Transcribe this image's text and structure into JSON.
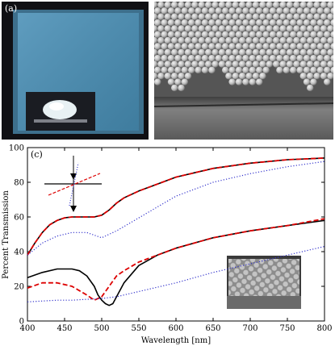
{
  "figure": {
    "panel_a": {
      "label": "(a)",
      "colors": {
        "frame": "#101014",
        "film": "#4f8fb3",
        "inset_bg": "#1a1c22",
        "droplet": "#e8f1f4"
      }
    },
    "panel_b": {
      "label": "",
      "colors": {
        "sphere": "#c9c9c9",
        "substrate": "#5f5f5f"
      }
    },
    "panel_c": {
      "label": "(c)"
    }
  },
  "chart_data": {
    "type": "line",
    "title": "",
    "xlabel": "Wavelength [nm]",
    "ylabel": "Percent Transmission",
    "xlim": [
      400,
      800
    ],
    "ylim": [
      0,
      100
    ],
    "xticks": [
      400,
      450,
      500,
      550,
      600,
      650,
      700,
      750,
      800
    ],
    "yticks": [
      0,
      20,
      40,
      60,
      80,
      100
    ],
    "grid": false,
    "legend": "none",
    "colors": {
      "solid": "#000000",
      "dashed": "#dd0000",
      "dotted": "#3333cc"
    },
    "series": [
      {
        "style": "solid",
        "group": "upper",
        "x": [
          400,
          410,
          420,
          430,
          440,
          450,
          460,
          470,
          480,
          490,
          500,
          510,
          520,
          530,
          550,
          575,
          600,
          625,
          650,
          675,
          700,
          725,
          750,
          775,
          800
        ],
        "y": [
          38,
          45,
          51,
          55.5,
          58,
          59.5,
          60,
          60,
          60,
          60,
          61,
          64,
          68,
          71,
          75,
          79,
          83,
          85.5,
          88,
          89.5,
          91,
          92,
          93,
          93.5,
          94
        ]
      },
      {
        "style": "dashed",
        "group": "upper",
        "x": [
          400,
          410,
          420,
          430,
          440,
          450,
          460,
          470,
          480,
          490,
          500,
          510,
          520,
          530,
          550,
          575,
          600,
          625,
          650,
          675,
          700,
          725,
          750,
          775,
          800
        ],
        "y": [
          38,
          45,
          51,
          55.5,
          58,
          59.5,
          60,
          60,
          60,
          60,
          61,
          64,
          68,
          71,
          75,
          79,
          83,
          85.5,
          88,
          89.5,
          91,
          92,
          93,
          93.5,
          94
        ]
      },
      {
        "style": "dotted",
        "group": "upper",
        "x": [
          400,
          420,
          440,
          460,
          480,
          500,
          520,
          540,
          560,
          580,
          600,
          650,
          700,
          750,
          800
        ],
        "y": [
          38,
          45,
          49,
          51,
          51,
          48,
          52,
          57,
          62,
          67,
          72,
          80,
          85,
          89,
          92
        ]
      },
      {
        "style": "solid",
        "group": "lower",
        "x": [
          400,
          420,
          440,
          460,
          470,
          480,
          490,
          495,
          500,
          505,
          510,
          515,
          520,
          530,
          550,
          575,
          600,
          650,
          700,
          750,
          800
        ],
        "y": [
          25,
          28,
          30,
          30,
          29,
          26,
          20,
          15,
          12,
          10,
          9,
          10,
          14,
          22,
          32,
          38,
          42,
          48,
          52,
          55,
          58
        ]
      },
      {
        "style": "dashed",
        "group": "lower",
        "x": [
          400,
          420,
          440,
          460,
          480,
          490,
          500,
          510,
          520,
          530,
          550,
          575,
          600,
          650,
          700,
          750,
          800
        ],
        "y": [
          19,
          22,
          22,
          20,
          15,
          12,
          14,
          20,
          26,
          29,
          34,
          38,
          42,
          48,
          52,
          55,
          59
        ]
      },
      {
        "style": "dotted",
        "group": "lower",
        "x": [
          400,
          440,
          460,
          480,
          500,
          520,
          540,
          560,
          600,
          650,
          700,
          750,
          800
        ],
        "y": [
          11,
          12,
          12,
          12.5,
          13,
          14,
          16,
          18,
          22,
          28,
          33,
          38,
          43
        ]
      }
    ]
  }
}
